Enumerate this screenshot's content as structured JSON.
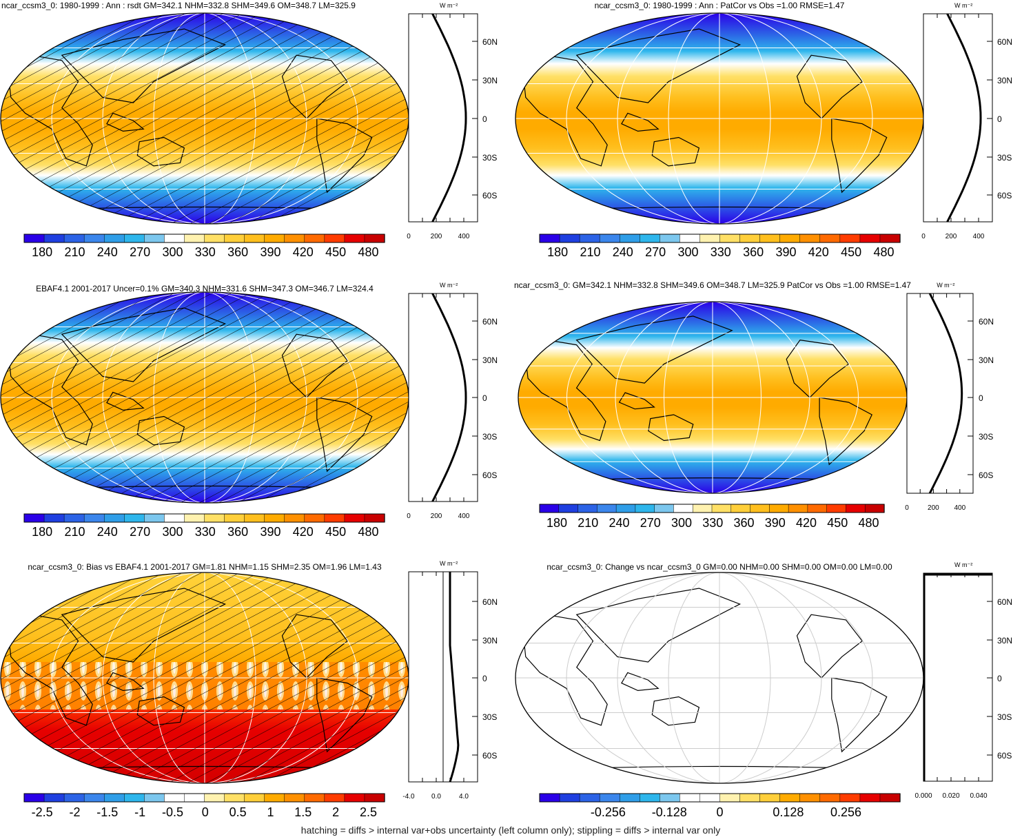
{
  "panels": [
    {
      "id": "p1",
      "title": "ncar_ccsm3_0: 1980-1999 : Ann : rsdt GM=342.1 NHM=332.8 SHM=349.6 OM=348.7 LM=325.9",
      "colorbar_labels": [
        "180",
        "210",
        "240",
        "270",
        "300",
        "330",
        "360",
        "390",
        "420",
        "450",
        "480"
      ],
      "profile_unit": "W m⁻²",
      "profile_xticks": [
        "0",
        "200",
        "400"
      ],
      "lat_ticks": [
        "60N",
        "30N",
        "0",
        "30S",
        "60S"
      ],
      "hatched": true
    },
    {
      "id": "p2",
      "title": "ncar_ccsm3_0: 1980-1999 : Ann : PatCor vs Obs =1.00 RMSE=1.47",
      "colorbar_labels": [
        "180",
        "210",
        "240",
        "270",
        "300",
        "330",
        "360",
        "390",
        "420",
        "450",
        "480"
      ],
      "profile_unit": "W m⁻²",
      "profile_xticks": [
        "0",
        "200",
        "400"
      ],
      "lat_ticks": [
        "60N",
        "30N",
        "0",
        "30S",
        "60S"
      ],
      "hatched": false
    },
    {
      "id": "p3",
      "title": "EBAF4.1 2001-2017 Uncer=0.1% GM=340.3 NHM=331.6 SHM=347.3 OM=346.7 LM=324.4",
      "colorbar_labels": [
        "180",
        "210",
        "240",
        "270",
        "300",
        "330",
        "360",
        "390",
        "420",
        "450",
        "480"
      ],
      "profile_unit": "W m⁻²",
      "profile_xticks": [
        "0",
        "200",
        "400"
      ],
      "lat_ticks": [
        "60N",
        "30N",
        "0",
        "30S",
        "60S"
      ],
      "hatched": true
    },
    {
      "id": "p4",
      "title": "ncar_ccsm3_0: GM=342.1 NHM=332.8 SHM=349.6 OM=348.7 LM=325.9 PatCor vs Obs =1.00 RMSE=1.47",
      "colorbar_labels": [
        "180",
        "210",
        "240",
        "270",
        "300",
        "330",
        "360",
        "390",
        "420",
        "450",
        "480"
      ],
      "profile_unit": "W m⁻²",
      "profile_xticks": [
        "0",
        "200",
        "400"
      ],
      "lat_ticks": [
        "60N",
        "30N",
        "0",
        "30S",
        "60S"
      ],
      "hatched": false
    },
    {
      "id": "p5",
      "title": "ncar_ccsm3_0: Bias vs EBAF4.1 2001-2017 GM=1.81 NHM=1.15 SHM=2.35 OM=1.96 LM=1.43",
      "colorbar_labels": [
        "-2.5",
        "-2",
        "-1.5",
        "-1",
        "-0.5",
        "0",
        "0.5",
        "1",
        "1.5",
        "2",
        "2.5"
      ],
      "profile_unit": "W m⁻²",
      "profile_xticks": [
        "-4.0",
        "0.0",
        "4.0"
      ],
      "lat_ticks": [
        "60N",
        "30N",
        "0",
        "30S",
        "60S"
      ],
      "hatched": true
    },
    {
      "id": "p6",
      "title": "ncar_ccsm3_0: Change vs ncar_ccsm3_0 GM=0.00 NHM=0.00 SHM=0.00 OM=0.00 LM=0.00",
      "colorbar_labels": [
        "-0.256",
        "-0.128",
        "0",
        "0.128",
        "0.256"
      ],
      "profile_unit": "W m⁻²",
      "profile_xticks": [
        "0.000",
        "0.020",
        "0.040"
      ],
      "lat_ticks": [
        "60N",
        "30N",
        "0",
        "30S",
        "60S"
      ],
      "hatched": false
    }
  ],
  "colors": {
    "sequential": [
      "#2a00e8",
      "#1f3fe0",
      "#2c63e6",
      "#3b86ec",
      "#2f9ee8",
      "#2eb6ec",
      "#7cc7ee",
      "#ffffff",
      "#fff2b0",
      "#ffe066",
      "#ffcf3a",
      "#ffbf1e",
      "#ffab00",
      "#ff9000",
      "#ff6a00",
      "#ff3c00",
      "#e60000",
      "#c80000"
    ],
    "diverging": [
      "#2a00e8",
      "#1f3fe0",
      "#2c63e6",
      "#3b86ec",
      "#2f9ee8",
      "#2eb6ec",
      "#7cc7ee",
      "#ffffff",
      "#ffffff",
      "#fff2b0",
      "#ffe066",
      "#ffcf3a",
      "#ffab00",
      "#ff9000",
      "#ff6a00",
      "#ff3c00",
      "#e60000",
      "#c80000"
    ]
  },
  "footer": "hatching = diffs > internal var+obs uncertainty (left column only); stippling = diffs > internal var only"
}
